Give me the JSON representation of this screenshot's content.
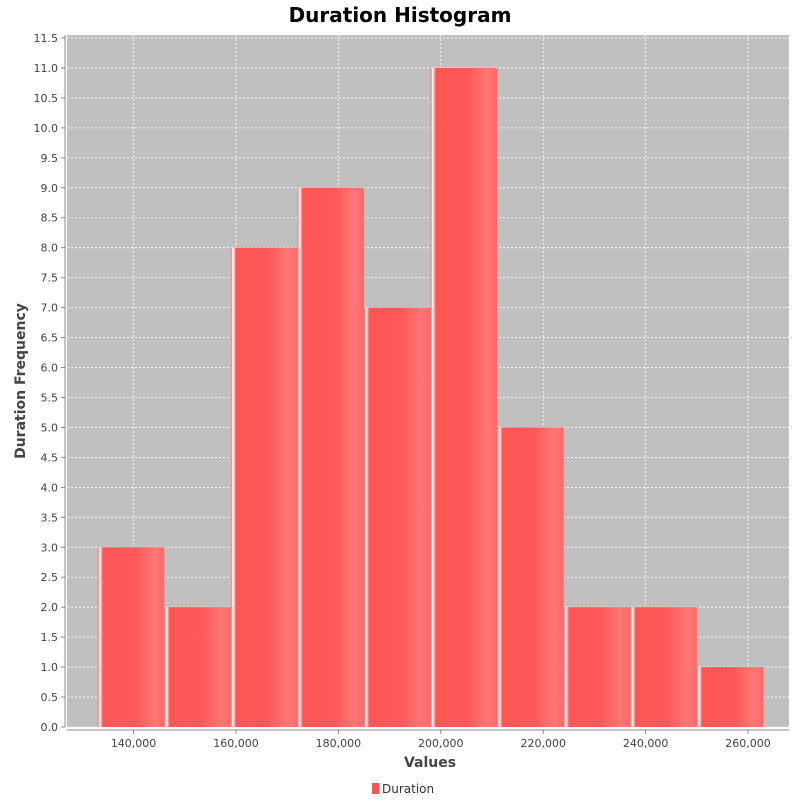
{
  "chart_data": {
    "type": "bar",
    "title": "Duration Histogram",
    "xlabel": "Values",
    "ylabel": "Duration Frequency",
    "xlim": [
      127000,
      268000
    ],
    "ylim": [
      0,
      11.5
    ],
    "x_ticks": [
      140000,
      160000,
      180000,
      200000,
      220000,
      240000,
      260000
    ],
    "x_tick_labels": [
      "140,000",
      "160,000",
      "180,000",
      "200,000",
      "220,000",
      "240,000",
      "260,000"
    ],
    "y_ticks": [
      0,
      0.5,
      1,
      1.5,
      2,
      2.5,
      3,
      3.5,
      4,
      4.5,
      5,
      5.5,
      6,
      6.5,
      7,
      7.5,
      8,
      8.5,
      9,
      9.5,
      10,
      10.5,
      11,
      11.5
    ],
    "y_tick_labels": [
      "0.0",
      "0.5",
      "1.0",
      "1.5",
      "2.0",
      "2.5",
      "3.0",
      "3.5",
      "4.0",
      "4.5",
      "5.0",
      "5.5",
      "6.0",
      "6.5",
      "7.0",
      "7.5",
      "8.0",
      "8.5",
      "9.0",
      "9.5",
      "10.0",
      "10.5",
      "11.0",
      "11.5"
    ],
    "grid": true,
    "legend_position": "bottom",
    "series": [
      {
        "name": "Duration",
        "color": "#ff5555",
        "bins": [
          {
            "start": 133000,
            "end": 146000,
            "count": 3
          },
          {
            "start": 146000,
            "end": 159000,
            "count": 2
          },
          {
            "start": 159000,
            "end": 172000,
            "count": 8
          },
          {
            "start": 172000,
            "end": 185000,
            "count": 9
          },
          {
            "start": 185000,
            "end": 198000,
            "count": 7
          },
          {
            "start": 198000,
            "end": 211000,
            "count": 11
          },
          {
            "start": 211000,
            "end": 224000,
            "count": 5
          },
          {
            "start": 224000,
            "end": 237000,
            "count": 2
          },
          {
            "start": 237000,
            "end": 250000,
            "count": 2
          },
          {
            "start": 250000,
            "end": 263000,
            "count": 1
          }
        ]
      }
    ],
    "plot_background": "#c0c0c0"
  }
}
